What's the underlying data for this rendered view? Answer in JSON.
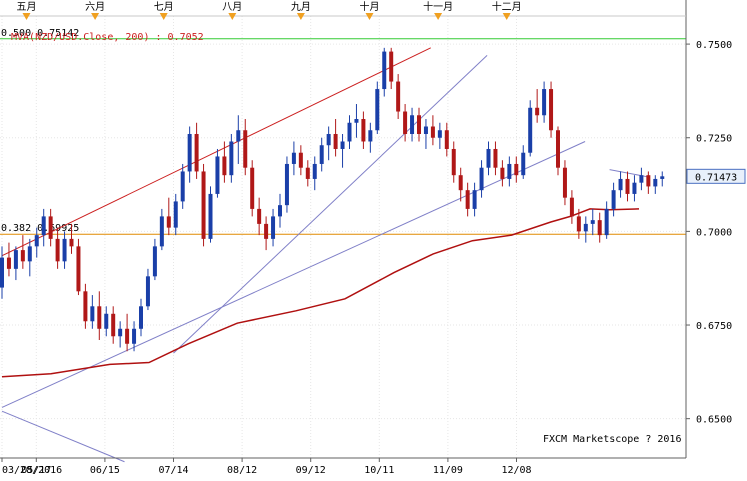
{
  "chart_data": {
    "type": "candlestick",
    "title": "",
    "indicator_label": "MVA(NZD/USD.Close, 200) : 0.7052",
    "current_price": "0.71473",
    "watermark": "FXCM Marketscope ? 2016",
    "ylim": [
      0.6395,
      0.7575
    ],
    "y_ticks": [
      {
        "value": 0.75,
        "label": "0.7500"
      },
      {
        "value": 0.725,
        "label": "0.7250"
      },
      {
        "value": 0.7,
        "label": "0.7000"
      },
      {
        "value": 0.675,
        "label": "0.6750"
      },
      {
        "value": 0.65,
        "label": "0.6500"
      }
    ],
    "x_range_days": [
      0,
      97
    ],
    "x_ticks": [
      {
        "day": 0,
        "label": "03/28/2016"
      },
      {
        "day": 7,
        "label": "05/17"
      },
      {
        "day": 21,
        "label": "06/15"
      },
      {
        "day": 35,
        "label": "07/14"
      },
      {
        "day": 49,
        "label": "08/12"
      },
      {
        "day": 63,
        "label": "09/12"
      },
      {
        "day": 77,
        "label": "10/11"
      },
      {
        "day": 91,
        "label": "11/09"
      },
      {
        "day": 105,
        "label": "12/08"
      }
    ],
    "month_markers": [
      {
        "day": 5,
        "label": "五月"
      },
      {
        "day": 19,
        "label": "六月"
      },
      {
        "day": 33,
        "label": "七月"
      },
      {
        "day": 47,
        "label": "八月"
      },
      {
        "day": 61,
        "label": "九月"
      },
      {
        "day": 75,
        "label": "十月"
      },
      {
        "day": 89,
        "label": "十一月"
      },
      {
        "day": 103,
        "label": "十二月"
      }
    ],
    "fib_levels": [
      {
        "label": "0.500  0.75142",
        "value": 0.75142,
        "color": "#33cc33"
      },
      {
        "label": "0.382  0.69925",
        "value": 0.69925,
        "color": "#e08a00"
      }
    ],
    "series": [
      {
        "name": "NZD/USD",
        "ohlc": [
          [
            0.685,
            0.696,
            0.682,
            0.693
          ],
          [
            0.693,
            0.697,
            0.688,
            0.69
          ],
          [
            0.69,
            0.696,
            0.687,
            0.695
          ],
          [
            0.695,
            0.699,
            0.69,
            0.692
          ],
          [
            0.692,
            0.698,
            0.688,
            0.696
          ],
          [
            0.696,
            0.701,
            0.693,
            0.699
          ],
          [
            0.699,
            0.706,
            0.696,
            0.704
          ],
          [
            0.704,
            0.706,
            0.696,
            0.698
          ],
          [
            0.698,
            0.701,
            0.69,
            0.692
          ],
          [
            0.692,
            0.7,
            0.69,
            0.698
          ],
          [
            0.698,
            0.702,
            0.694,
            0.696
          ],
          [
            0.696,
            0.698,
            0.683,
            0.684
          ],
          [
            0.684,
            0.686,
            0.674,
            0.676
          ],
          [
            0.676,
            0.683,
            0.674,
            0.68
          ],
          [
            0.68,
            0.684,
            0.671,
            0.674
          ],
          [
            0.674,
            0.68,
            0.672,
            0.678
          ],
          [
            0.678,
            0.68,
            0.67,
            0.672
          ],
          [
            0.672,
            0.676,
            0.669,
            0.674
          ],
          [
            0.674,
            0.678,
            0.668,
            0.67
          ],
          [
            0.67,
            0.676,
            0.668,
            0.674
          ],
          [
            0.674,
            0.682,
            0.672,
            0.68
          ],
          [
            0.68,
            0.69,
            0.679,
            0.688
          ],
          [
            0.688,
            0.698,
            0.687,
            0.696
          ],
          [
            0.696,
            0.706,
            0.695,
            0.704
          ],
          [
            0.704,
            0.709,
            0.699,
            0.701
          ],
          [
            0.701,
            0.71,
            0.699,
            0.708
          ],
          [
            0.708,
            0.718,
            0.706,
            0.716
          ],
          [
            0.716,
            0.728,
            0.713,
            0.726
          ],
          [
            0.726,
            0.729,
            0.714,
            0.716
          ],
          [
            0.716,
            0.718,
            0.696,
            0.698
          ],
          [
            0.698,
            0.712,
            0.697,
            0.71
          ],
          [
            0.71,
            0.722,
            0.709,
            0.72
          ],
          [
            0.72,
            0.724,
            0.713,
            0.715
          ],
          [
            0.715,
            0.726,
            0.713,
            0.724
          ],
          [
            0.724,
            0.731,
            0.718,
            0.727
          ],
          [
            0.727,
            0.73,
            0.715,
            0.717
          ],
          [
            0.717,
            0.719,
            0.704,
            0.706
          ],
          [
            0.706,
            0.709,
            0.699,
            0.702
          ],
          [
            0.702,
            0.704,
            0.695,
            0.698
          ],
          [
            0.698,
            0.706,
            0.696,
            0.704
          ],
          [
            0.704,
            0.71,
            0.701,
            0.707
          ],
          [
            0.707,
            0.72,
            0.705,
            0.718
          ],
          [
            0.718,
            0.724,
            0.715,
            0.721
          ],
          [
            0.721,
            0.723,
            0.715,
            0.717
          ],
          [
            0.717,
            0.719,
            0.712,
            0.714
          ],
          [
            0.714,
            0.72,
            0.711,
            0.718
          ],
          [
            0.718,
            0.725,
            0.716,
            0.723
          ],
          [
            0.723,
            0.728,
            0.719,
            0.726
          ],
          [
            0.726,
            0.73,
            0.72,
            0.722
          ],
          [
            0.722,
            0.726,
            0.717,
            0.724
          ],
          [
            0.724,
            0.731,
            0.722,
            0.729
          ],
          [
            0.729,
            0.734,
            0.725,
            0.73
          ],
          [
            0.73,
            0.732,
            0.722,
            0.724
          ],
          [
            0.724,
            0.729,
            0.721,
            0.727
          ],
          [
            0.727,
            0.74,
            0.726,
            0.738
          ],
          [
            0.738,
            0.749,
            0.736,
            0.748
          ],
          [
            0.748,
            0.749,
            0.738,
            0.74
          ],
          [
            0.74,
            0.742,
            0.73,
            0.732
          ],
          [
            0.732,
            0.734,
            0.724,
            0.726
          ],
          [
            0.726,
            0.733,
            0.724,
            0.731
          ],
          [
            0.731,
            0.733,
            0.724,
            0.726
          ],
          [
            0.726,
            0.73,
            0.722,
            0.728
          ],
          [
            0.728,
            0.731,
            0.723,
            0.725
          ],
          [
            0.725,
            0.729,
            0.722,
            0.727
          ],
          [
            0.727,
            0.729,
            0.72,
            0.722
          ],
          [
            0.722,
            0.724,
            0.713,
            0.715
          ],
          [
            0.715,
            0.717,
            0.708,
            0.711
          ],
          [
            0.711,
            0.713,
            0.704,
            0.706
          ],
          [
            0.706,
            0.713,
            0.704,
            0.711
          ],
          [
            0.711,
            0.719,
            0.709,
            0.717
          ],
          [
            0.717,
            0.724,
            0.715,
            0.722
          ],
          [
            0.722,
            0.724,
            0.715,
            0.717
          ],
          [
            0.717,
            0.719,
            0.712,
            0.714
          ],
          [
            0.714,
            0.72,
            0.712,
            0.718
          ],
          [
            0.718,
            0.72,
            0.713,
            0.715
          ],
          [
            0.715,
            0.723,
            0.714,
            0.721
          ],
          [
            0.721,
            0.735,
            0.72,
            0.733
          ],
          [
            0.733,
            0.738,
            0.729,
            0.731
          ],
          [
            0.731,
            0.74,
            0.729,
            0.738
          ],
          [
            0.738,
            0.74,
            0.725,
            0.727
          ],
          [
            0.727,
            0.728,
            0.715,
            0.717
          ],
          [
            0.717,
            0.719,
            0.707,
            0.709
          ],
          [
            0.709,
            0.711,
            0.702,
            0.704
          ],
          [
            0.704,
            0.706,
            0.698,
            0.7
          ],
          [
            0.7,
            0.704,
            0.697,
            0.702
          ],
          [
            0.702,
            0.706,
            0.699,
            0.703
          ],
          [
            0.703,
            0.705,
            0.697,
            0.699
          ],
          [
            0.699,
            0.708,
            0.698,
            0.706
          ],
          [
            0.706,
            0.713,
            0.704,
            0.711
          ],
          [
            0.711,
            0.716,
            0.709,
            0.714
          ],
          [
            0.714,
            0.716,
            0.708,
            0.71
          ],
          [
            0.71,
            0.715,
            0.708,
            0.713
          ],
          [
            0.713,
            0.717,
            0.711,
            0.715
          ],
          [
            0.715,
            0.716,
            0.71,
            0.712
          ],
          [
            0.712,
            0.715,
            0.71,
            0.714
          ],
          [
            0.714,
            0.716,
            0.712,
            0.7147
          ]
        ]
      },
      {
        "name": "MVA 200",
        "points": [
          [
            0,
            0.6612
          ],
          [
            10,
            0.662
          ],
          [
            22,
            0.6645
          ],
          [
            30,
            0.665
          ],
          [
            38,
            0.67
          ],
          [
            48,
            0.6755
          ],
          [
            60,
            0.6788
          ],
          [
            70,
            0.682
          ],
          [
            80,
            0.689
          ],
          [
            88,
            0.694
          ],
          [
            96,
            0.6975
          ],
          [
            104,
            0.699
          ],
          [
            112,
            0.7025
          ],
          [
            116,
            0.704
          ],
          [
            120,
            0.706
          ],
          [
            124,
            0.7058
          ],
          [
            130,
            0.706
          ]
        ]
      }
    ],
    "trendlines": [
      {
        "name": "upper channel",
        "color": "#cc2020",
        "points": [
          [
            0,
            0.6935
          ],
          [
            87.5,
            0.749
          ]
        ]
      },
      {
        "name": "support 1",
        "color": "#8080c8",
        "points": [
          [
            35,
            0.6675
          ],
          [
            99,
            0.747
          ]
        ]
      },
      {
        "name": "support 2",
        "color": "#8080c8",
        "points": [
          [
            0,
            0.653
          ],
          [
            119,
            0.724
          ]
        ]
      },
      {
        "name": "lower fan",
        "color": "#8080c8",
        "points": [
          [
            0,
            0.652
          ],
          [
            25,
            0.6385
          ]
        ]
      },
      {
        "name": "short resistance",
        "color": "#8080c8",
        "points": [
          [
            124,
            0.7165
          ],
          [
            132,
            0.7145
          ]
        ]
      }
    ],
    "grid": true,
    "legend": "none"
  }
}
